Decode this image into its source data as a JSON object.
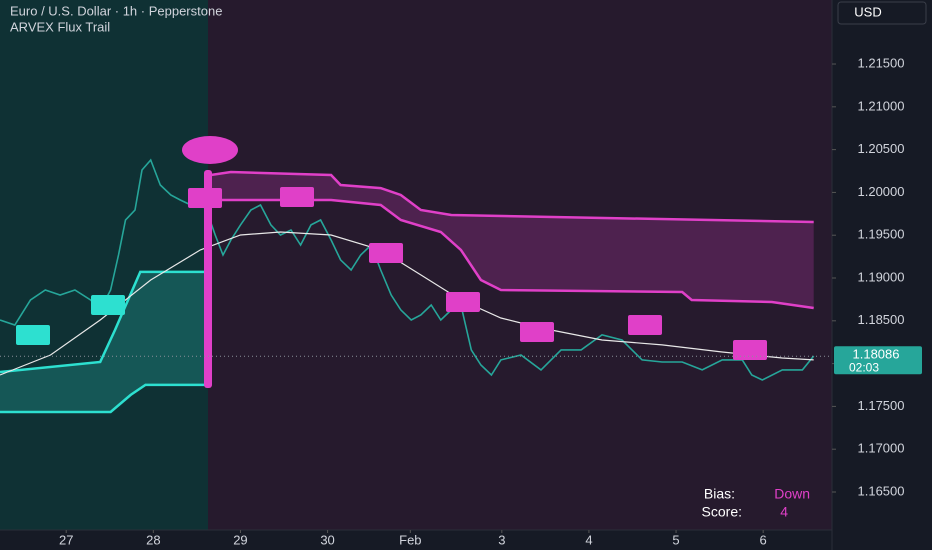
{
  "chart_data": {
    "type": "line",
    "title": "Euro / U.S. Dollar · 1h · Pepperstone",
    "subtitle": "ARVEX Flux Trail",
    "currency": "USD",
    "xlim": [
      -0.76,
      8.79
    ],
    "ylim": [
      1.16056,
      1.22248
    ],
    "xticks": [
      {
        "value": 0,
        "label": "27"
      },
      {
        "value": 1,
        "label": "28"
      },
      {
        "value": 2,
        "label": "29"
      },
      {
        "value": 3,
        "label": "30"
      },
      {
        "value": 3.95,
        "label": "Feb"
      },
      {
        "value": 5,
        "label": "3"
      },
      {
        "value": 6,
        "label": "4"
      },
      {
        "value": 7,
        "label": "5"
      },
      {
        "value": 8,
        "label": "6"
      }
    ],
    "yticks": [
      {
        "value": 1.165,
        "label": "1.16500"
      },
      {
        "value": 1.17,
        "label": "1.17000"
      },
      {
        "value": 1.175,
        "label": "1.17500"
      },
      {
        "value": 1.18,
        "label": "1.18000"
      },
      {
        "value": 1.185,
        "label": "1.18500"
      },
      {
        "value": 1.19,
        "label": "1.19000"
      },
      {
        "value": 1.195,
        "label": "1.19500"
      },
      {
        "value": 1.2,
        "label": "1.20000"
      },
      {
        "value": 1.205,
        "label": "1.20500"
      },
      {
        "value": 1.21,
        "label": "1.21000"
      },
      {
        "value": 1.215,
        "label": "1.21500"
      }
    ],
    "last_price": 1.18086,
    "countdown": "02:03",
    "bias_label": "Bias:",
    "bias": "Down",
    "score_label": "Score:",
    "score": 4,
    "bands": [
      {
        "color": "#2de0d0",
        "upper": {
          "x": [
            -0.76,
            0.39,
            0.56,
            0.85,
            1.6
          ],
          "values": [
            1.17902,
            1.18019,
            1.18393,
            1.19071,
            1.19071
          ]
        },
        "lower": {
          "x": [
            -0.76,
            0.51,
            0.74,
            0.91,
            1.6
          ],
          "values": [
            1.17435,
            1.17435,
            1.17634,
            1.17751,
            1.17751
          ]
        }
      },
      {
        "color": "#e040c8",
        "upper": {
          "x": [
            1.66,
            1.89,
            3.04,
            3.15,
            3.61,
            3.84,
            4.07,
            4.42,
            8.58
          ],
          "values": [
            1.20203,
            1.20238,
            1.20203,
            1.20087,
            1.20051,
            1.1997,
            1.19795,
            1.19736,
            1.19654
          ]
        },
        "lower": {
          "x": [
            1.66,
            3.04,
            3.61,
            3.84,
            4.3,
            4.53,
            4.76,
            4.99,
            7.07,
            7.18,
            8.1,
            8.58
          ],
          "values": [
            1.19911,
            1.19911,
            1.19853,
            1.19678,
            1.19538,
            1.19328,
            1.18977,
            1.1886,
            1.18837,
            1.18743,
            1.1872,
            1.1865
          ]
        }
      }
    ],
    "series": [
      {
        "color": "#26a69a",
        "x": [
          -0.76,
          -0.59,
          -0.41,
          -0.24,
          -0.07,
          0.1,
          0.28,
          0.39,
          0.51,
          0.6,
          0.68,
          0.79,
          0.87,
          0.97,
          1.08,
          1.2,
          1.31,
          1.43,
          1.54,
          1.63,
          1.71,
          1.8,
          1.89,
          2.0,
          2.12,
          2.23,
          2.35,
          2.46,
          2.58,
          2.69,
          2.81,
          2.92,
          3.04,
          3.15,
          3.27,
          3.38,
          3.5,
          3.61,
          3.73,
          3.84,
          3.96,
          4.07,
          4.19,
          4.3,
          4.42,
          4.53,
          4.65,
          4.76,
          4.88,
          4.99,
          5.22,
          5.45,
          5.68,
          5.91,
          6.15,
          6.38,
          6.61,
          6.84,
          7.07,
          7.3,
          7.53,
          7.76,
          7.87,
          7.99,
          8.22,
          8.45,
          8.58
        ],
        "values": [
          1.18509,
          1.18451,
          1.18743,
          1.1886,
          1.18802,
          1.1886,
          1.18743,
          1.18627,
          1.1886,
          1.19269,
          1.19678,
          1.19795,
          1.20262,
          1.20379,
          1.20087,
          1.1997,
          1.19911,
          1.19853,
          1.19911,
          1.19736,
          1.19503,
          1.19269,
          1.19444,
          1.1962,
          1.19795,
          1.19853,
          1.1962,
          1.19503,
          1.19561,
          1.19386,
          1.1962,
          1.19678,
          1.19444,
          1.19211,
          1.19094,
          1.19269,
          1.19386,
          1.19094,
          1.18802,
          1.18627,
          1.18509,
          1.18568,
          1.18685,
          1.18509,
          1.18627,
          1.18685,
          1.1816,
          1.17984,
          1.17867,
          1.18043,
          1.18101,
          1.17926,
          1.1816,
          1.1816,
          1.18335,
          1.18276,
          1.18043,
          1.18019,
          1.18019,
          1.17926,
          1.18043,
          1.18043,
          1.17867,
          1.17809,
          1.17926,
          1.17926,
          1.18089
        ]
      },
      {
        "color": "#e8e8e8",
        "x": [
          -0.76,
          -0.18,
          0.39,
          0.97,
          1.54,
          2.0,
          2.46,
          3.04,
          3.61,
          4.07,
          4.53,
          4.99,
          5.45,
          6.15,
          6.84,
          7.53,
          8.22,
          8.58
        ],
        "values": [
          1.17867,
          1.18101,
          1.18509,
          1.18977,
          1.19328,
          1.19503,
          1.19538,
          1.19503,
          1.19328,
          1.19036,
          1.18743,
          1.18533,
          1.18416,
          1.18276,
          1.18218,
          1.18136,
          1.18066,
          1.18043
        ]
      }
    ]
  }
}
